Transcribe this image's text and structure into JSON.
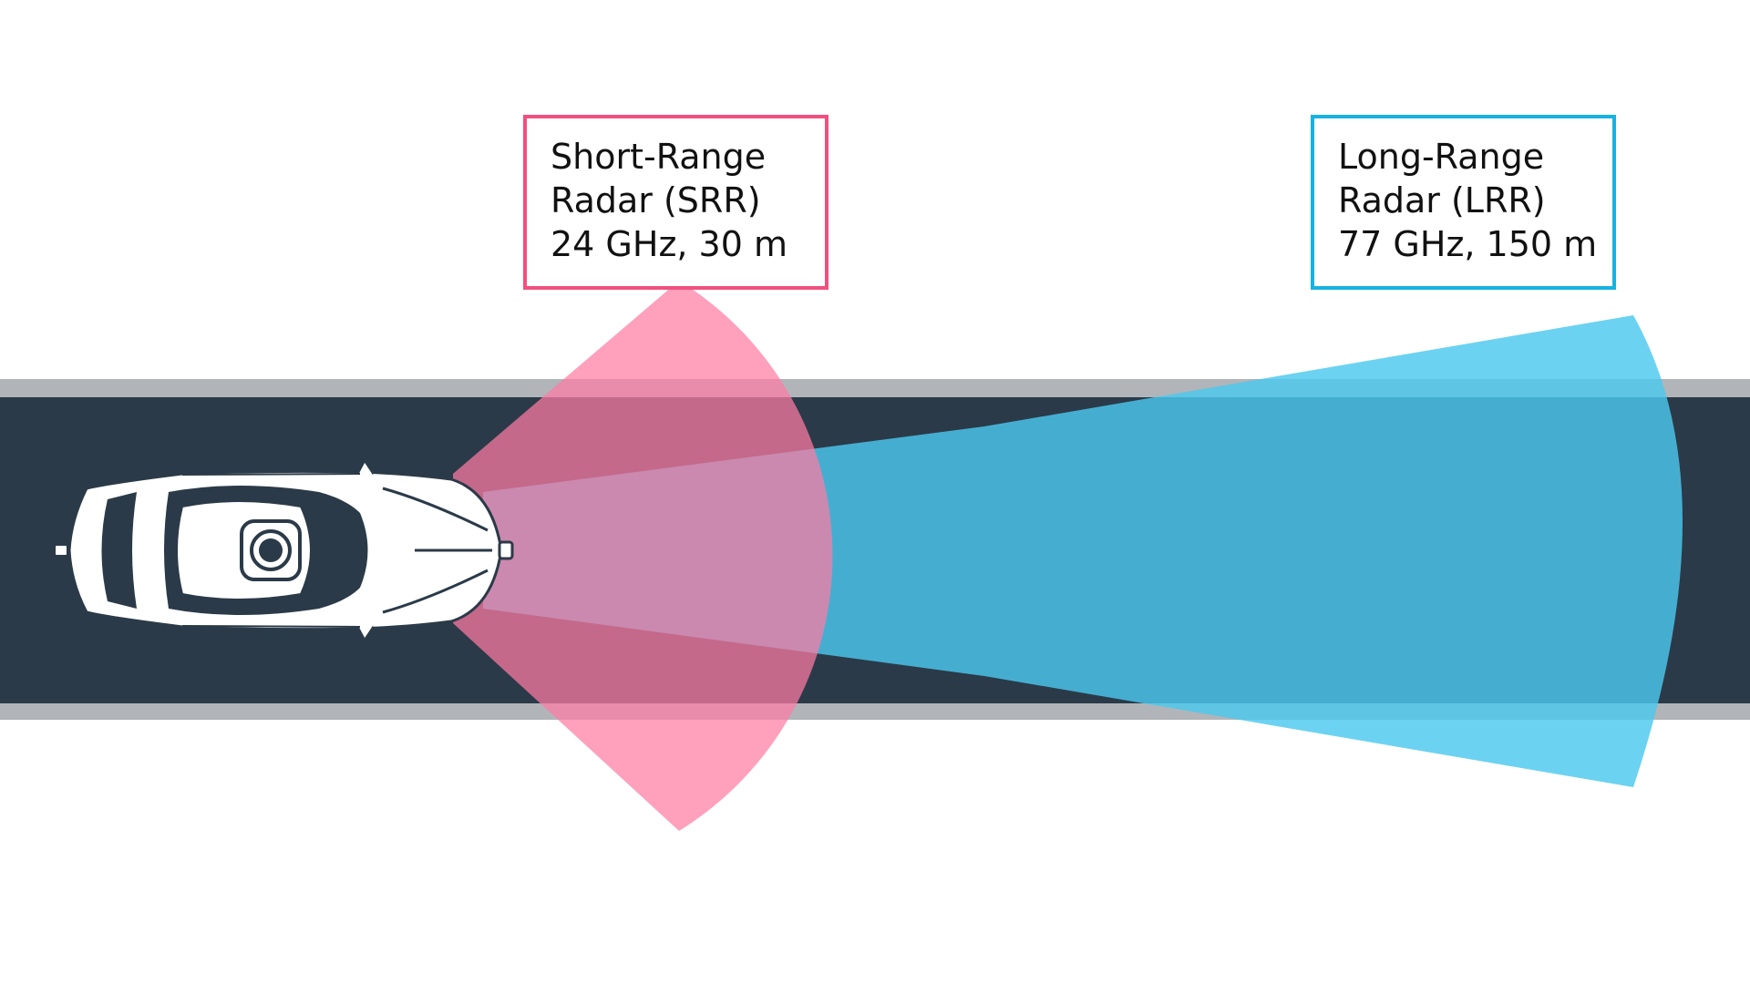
{
  "colors": {
    "background": "#ffffff",
    "road": "#2b3a48",
    "road_edge": "#b1b5b9",
    "srr_beam": "#ff7ba3",
    "srr_border": "#f0507f",
    "lrr_beam": "#4cc8ee",
    "lrr_border": "#17b2e2",
    "car_body": "#ffffff",
    "car_glass": "#2b3a48"
  },
  "short_range_radar": {
    "lines": [
      "Short-Range",
      "Radar (SRR)",
      "24 GHz, 30 m"
    ],
    "frequency": "24 GHz",
    "range": "30 m"
  },
  "long_range_radar": {
    "lines": [
      "Long-Range",
      "Radar (LRR)",
      "77 GHz, 150 m"
    ],
    "frequency": "77 GHz",
    "range": "150 m"
  },
  "icons": {
    "car": "car-top-view-icon",
    "sensor": "camera-sensor-icon"
  }
}
